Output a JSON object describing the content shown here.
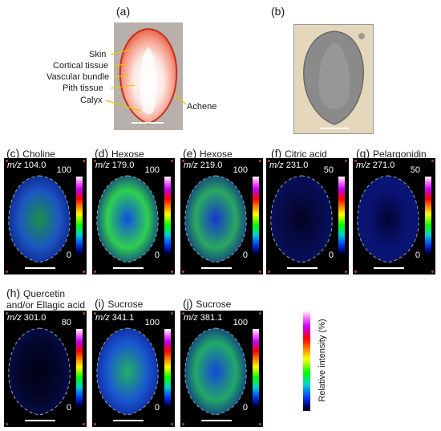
{
  "panel_a": {
    "label": "(a)",
    "annotations": [
      "Skin",
      "Cortical tissue",
      "Vascular bundle",
      "Pith tissue",
      "Calyx",
      "Achene"
    ]
  },
  "panel_b": {
    "label": "(b)"
  },
  "ion_panels": [
    {
      "label": "(c)",
      "title": "Choline",
      "mz_prefix": "m/z",
      "mz": "104.0",
      "max": "100",
      "min": "0"
    },
    {
      "label": "(d)",
      "title": "Hexose",
      "mz_prefix": "m/z",
      "mz": "179.0",
      "max": "100",
      "min": "0"
    },
    {
      "label": "(e)",
      "title": "Hexose",
      "mz_prefix": "m/z",
      "mz": "219.0",
      "max": "100",
      "min": "0"
    },
    {
      "label": "(f)",
      "title": "Citric acid",
      "mz_prefix": "m/z",
      "mz": "231.0",
      "max": "50",
      "min": "0"
    },
    {
      "label": "(g)",
      "title": "Pelargonidin",
      "mz_prefix": "m/z",
      "mz": "271.0",
      "max": "50",
      "min": "0"
    },
    {
      "label": "(h)",
      "title": "Quercetin",
      "title2": "and/or Ellagic acid",
      "mz_prefix": "m/z",
      "mz": "301.0",
      "max": "80",
      "min": "0"
    },
    {
      "label": "(i)",
      "title": "Sucrose",
      "mz_prefix": "m/z",
      "mz": "341.1",
      "max": "100",
      "min": "0"
    },
    {
      "label": "(j)",
      "title": "Sucrose",
      "mz_prefix": "m/z",
      "mz": "381.1",
      "max": "100",
      "min": "0"
    }
  ],
  "legend": {
    "label": "Relative intensity (%)"
  },
  "colors": {
    "intensity_high": "#ff00ff",
    "intensity_low": "#000080",
    "background": "#000000"
  }
}
